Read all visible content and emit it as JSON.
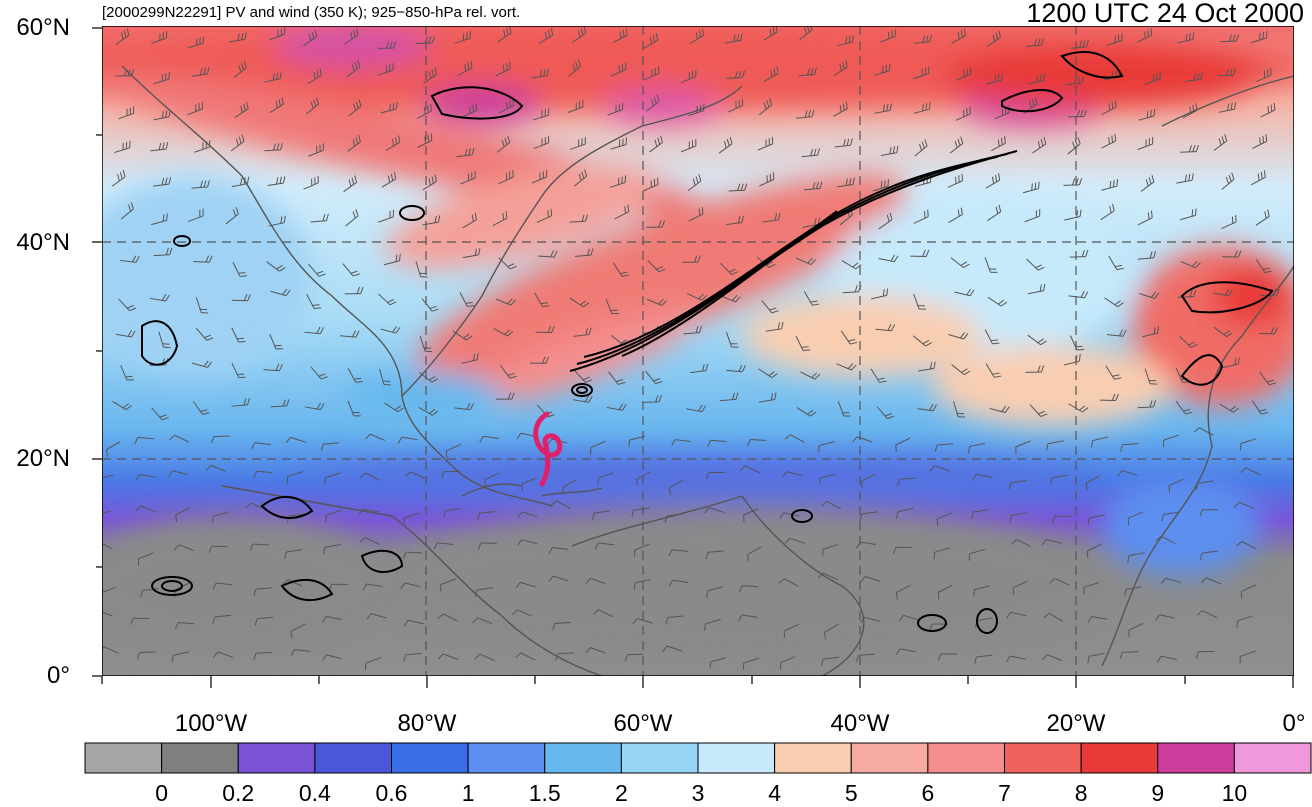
{
  "header": {
    "left_text": "[2000299N22291] PV and wind (350 K); 925−850-hPa rel. vort.",
    "right_text": "1200 UTC 24 Oct 2000"
  },
  "map": {
    "lat_labels": [
      "60°N",
      "40°N",
      "20°N",
      "0°"
    ],
    "lon_labels": [
      "100°W",
      "80°W",
      "60°W",
      "40°W",
      "20°W",
      "0°"
    ],
    "storm_symbol_color": "#e0206a",
    "vorticity_contour_color": "#000000",
    "coastline_color": "#555555",
    "grid_style": "dashed"
  },
  "colorbar": {
    "colors": [
      "#a6a6a6",
      "#7f7f7f",
      "#7a52d6",
      "#4a58d8",
      "#3a6ee6",
      "#5c8ff0",
      "#66b8ee",
      "#98d4f6",
      "#c6e9fb",
      "#f9cdb0",
      "#f7aaa2",
      "#f48d8d",
      "#f0625e",
      "#e83a38",
      "#cc3e9c",
      "#ef98dc"
    ],
    "labels": [
      "0",
      "0.2",
      "0.4",
      "0.6",
      "1",
      "1.5",
      "2",
      "3",
      "4",
      "5",
      "6",
      "7",
      "8",
      "9",
      "10"
    ]
  }
}
